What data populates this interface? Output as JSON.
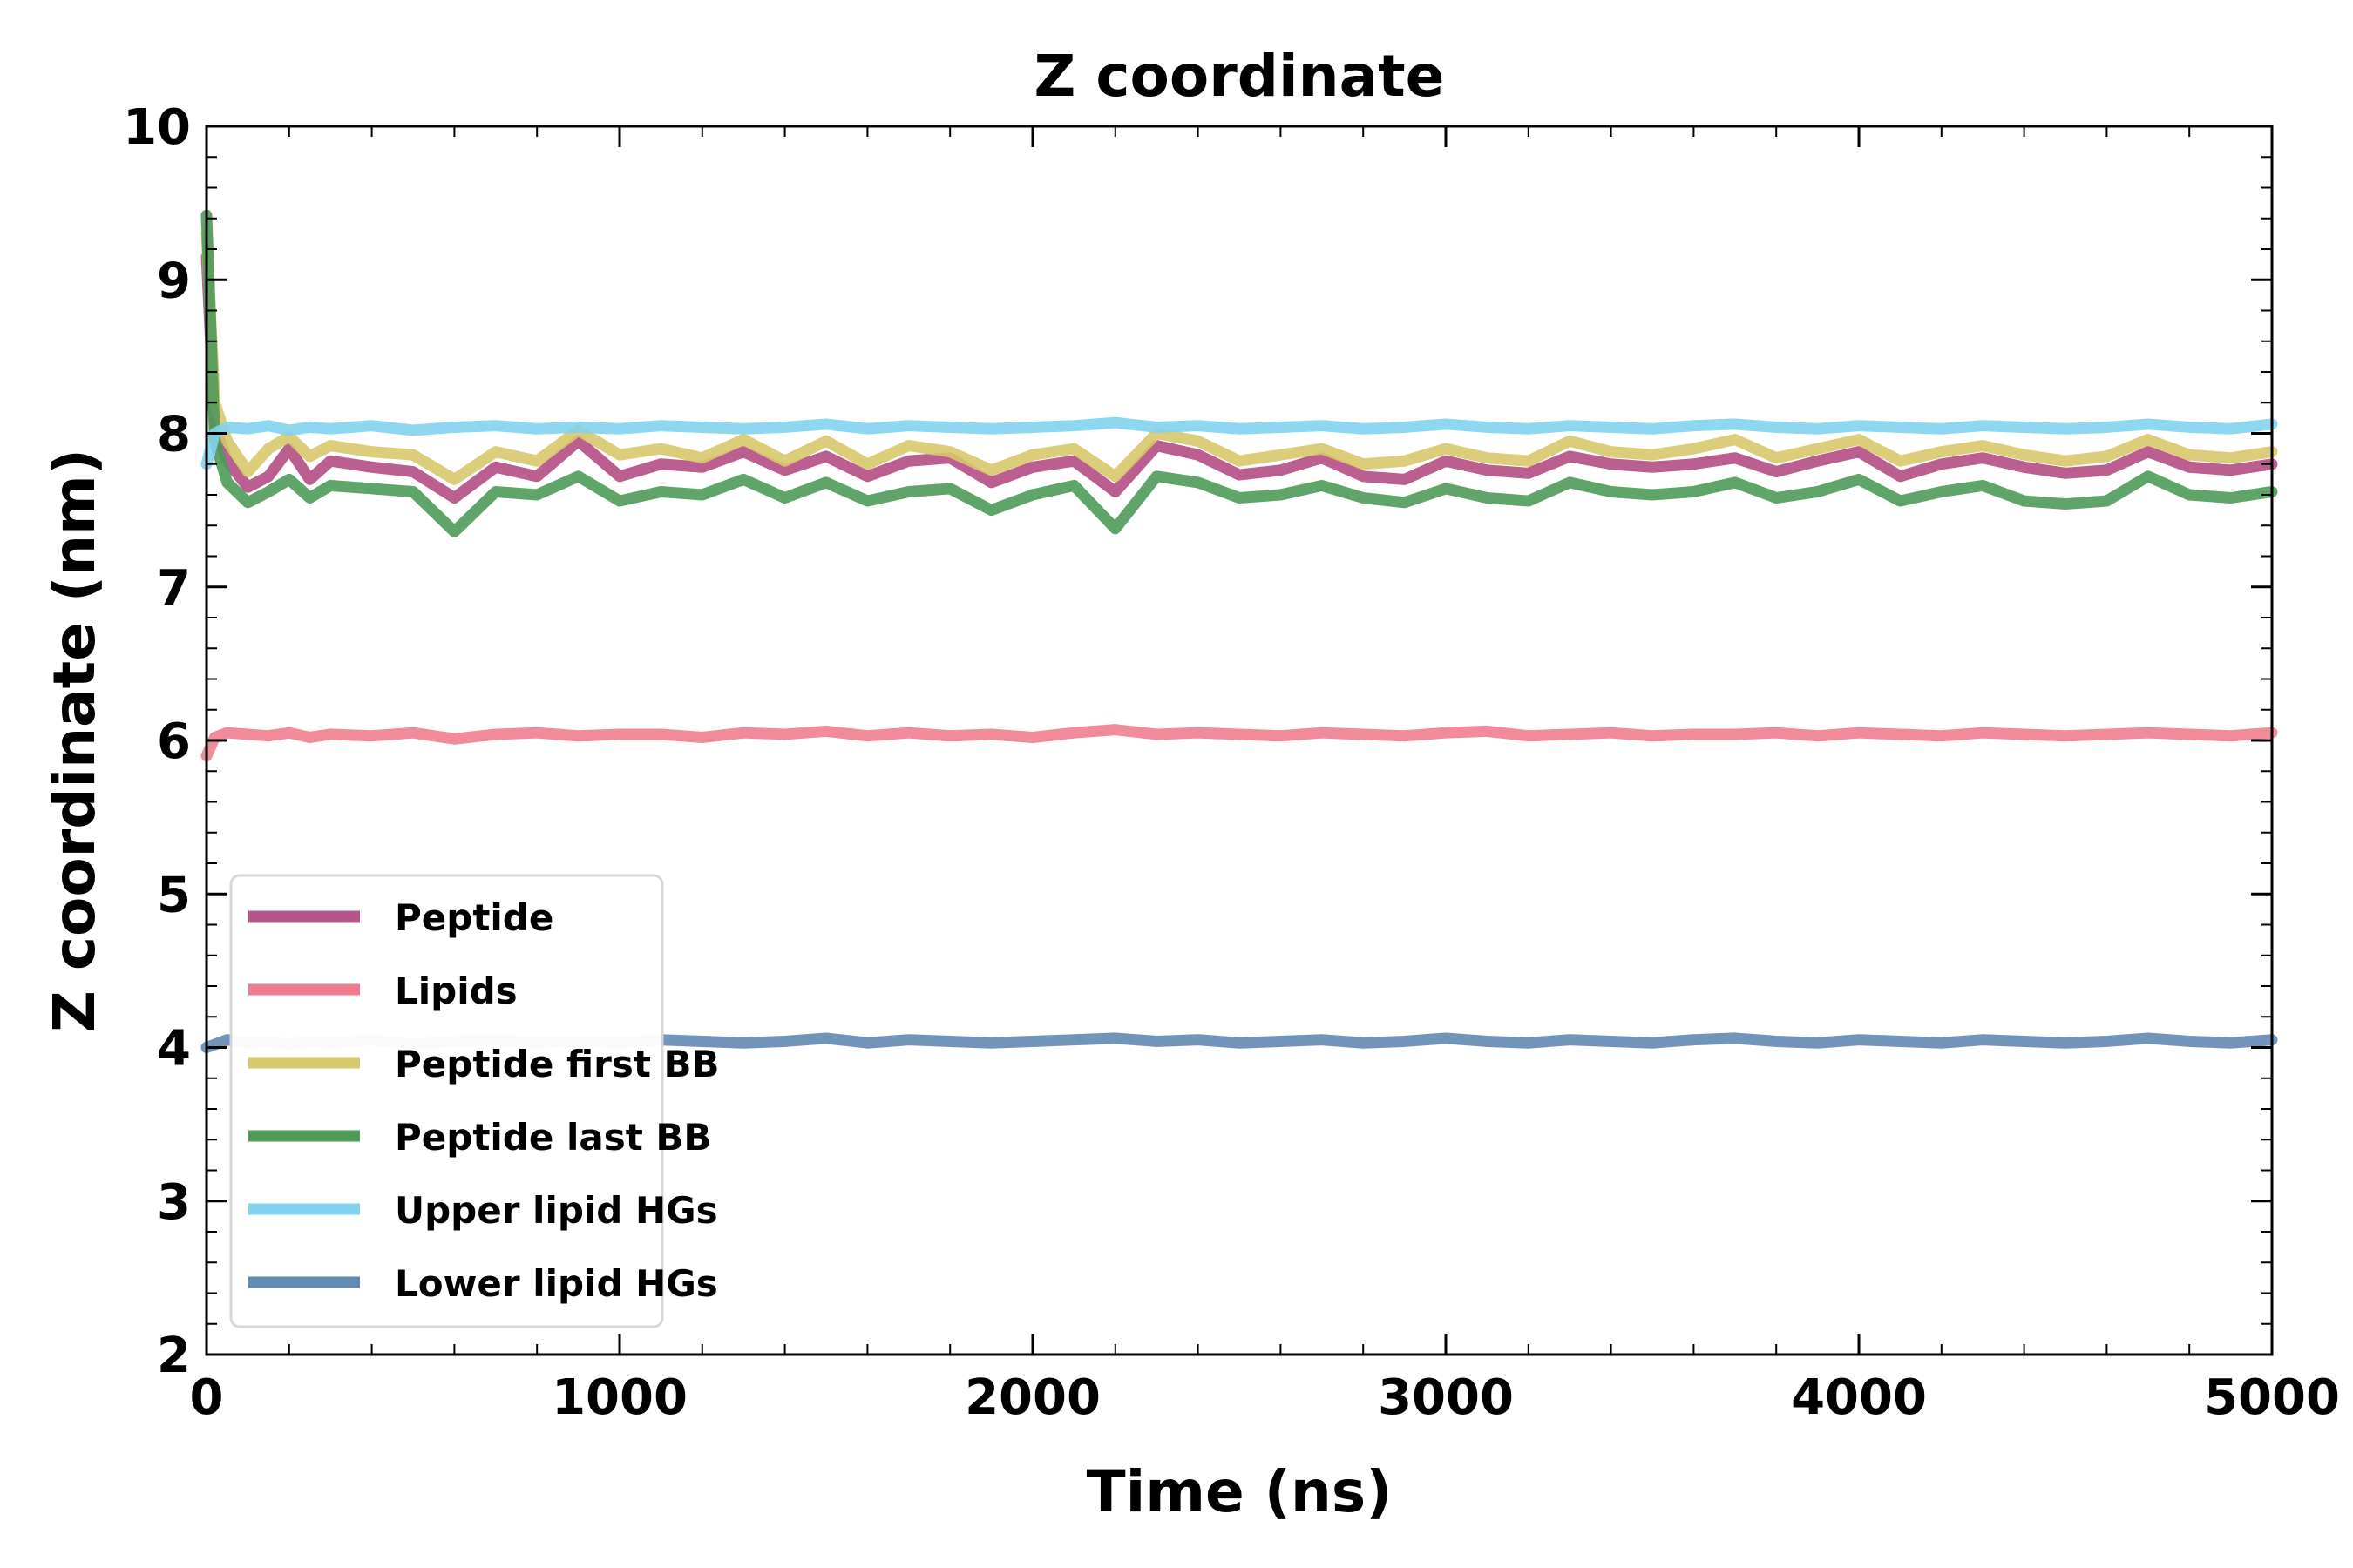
{
  "chart_data": {
    "type": "line",
    "title": "Z coordinate",
    "xlabel": "Time (ns)",
    "ylabel": "Z coordinate (nm)",
    "xlim": [
      0,
      5000
    ],
    "ylim": [
      2,
      10
    ],
    "x_ticks": [
      0,
      1000,
      2000,
      3000,
      4000,
      5000
    ],
    "y_ticks": [
      2,
      3,
      4,
      5,
      6,
      7,
      8,
      9,
      10
    ],
    "x_ticks_text": [
      "0",
      "1000",
      "2000",
      "3000",
      "4000",
      "5000"
    ],
    "y_ticks_text": [
      "2",
      "3",
      "4",
      "5",
      "6",
      "7",
      "8",
      "9",
      "10"
    ],
    "grid": false,
    "legend_position": "lower-left",
    "series": [
      {
        "name": "Peptide",
        "color": "#b7558a",
        "x": [
          0,
          20,
          50,
          100,
          150,
          200,
          250,
          300,
          400,
          500,
          600,
          700,
          800,
          900,
          1000,
          1100,
          1200,
          1300,
          1400,
          1500,
          1600,
          1700,
          1800,
          1900,
          2000,
          2100,
          2200,
          2300,
          2400,
          2500,
          2600,
          2700,
          2800,
          2900,
          3000,
          3100,
          3200,
          3300,
          3400,
          3500,
          3600,
          3700,
          3800,
          3900,
          4000,
          4100,
          4200,
          4300,
          4400,
          4500,
          4600,
          4700,
          4800,
          4900,
          5000
        ],
        "y": [
          9.15,
          8.05,
          7.82,
          7.65,
          7.72,
          7.9,
          7.7,
          7.82,
          7.78,
          7.75,
          7.58,
          7.78,
          7.72,
          7.95,
          7.72,
          7.8,
          7.78,
          7.88,
          7.76,
          7.85,
          7.72,
          7.82,
          7.84,
          7.68,
          7.78,
          7.82,
          7.62,
          7.92,
          7.86,
          7.73,
          7.76,
          7.84,
          7.72,
          7.7,
          7.82,
          7.76,
          7.74,
          7.85,
          7.8,
          7.78,
          7.8,
          7.84,
          7.75,
          7.82,
          7.88,
          7.72,
          7.8,
          7.84,
          7.78,
          7.74,
          7.76,
          7.88,
          7.78,
          7.76,
          7.8
        ]
      },
      {
        "name": "Lipids",
        "color": "#ef7d8e",
        "x": [
          0,
          20,
          50,
          100,
          150,
          200,
          250,
          300,
          400,
          500,
          600,
          700,
          800,
          900,
          1000,
          1100,
          1200,
          1300,
          1400,
          1500,
          1600,
          1700,
          1800,
          1900,
          2000,
          2100,
          2200,
          2300,
          2400,
          2500,
          2600,
          2700,
          2800,
          2900,
          3000,
          3100,
          3200,
          3300,
          3400,
          3500,
          3600,
          3700,
          3800,
          3900,
          4000,
          4100,
          4200,
          4300,
          4400,
          4500,
          4600,
          4700,
          4800,
          4900,
          5000
        ],
        "y": [
          5.9,
          6.02,
          6.05,
          6.04,
          6.03,
          6.05,
          6.02,
          6.04,
          6.03,
          6.05,
          6.01,
          6.04,
          6.05,
          6.03,
          6.04,
          6.04,
          6.02,
          6.05,
          6.04,
          6.06,
          6.03,
          6.05,
          6.03,
          6.04,
          6.02,
          6.05,
          6.07,
          6.04,
          6.05,
          6.04,
          6.03,
          6.05,
          6.04,
          6.03,
          6.05,
          6.06,
          6.03,
          6.04,
          6.05,
          6.03,
          6.04,
          6.04,
          6.05,
          6.03,
          6.05,
          6.04,
          6.03,
          6.05,
          6.04,
          6.03,
          6.04,
          6.05,
          6.04,
          6.03,
          6.05
        ]
      },
      {
        "name": "Peptide first BB",
        "color": "#d8c86c",
        "x": [
          0,
          20,
          50,
          100,
          150,
          200,
          250,
          300,
          400,
          500,
          600,
          700,
          800,
          900,
          1000,
          1100,
          1200,
          1300,
          1400,
          1500,
          1600,
          1700,
          1800,
          1900,
          2000,
          2100,
          2200,
          2300,
          2400,
          2500,
          2600,
          2700,
          2800,
          2900,
          3000,
          3100,
          3200,
          3300,
          3400,
          3500,
          3600,
          3700,
          3800,
          3900,
          4000,
          4100,
          4200,
          4300,
          4400,
          4500,
          4600,
          4700,
          4800,
          4900,
          5000
        ],
        "y": [
          9.3,
          8.2,
          7.95,
          7.75,
          7.9,
          7.98,
          7.85,
          7.92,
          7.88,
          7.86,
          7.7,
          7.88,
          7.82,
          8.02,
          7.86,
          7.9,
          7.84,
          7.96,
          7.82,
          7.95,
          7.8,
          7.92,
          7.88,
          7.76,
          7.86,
          7.9,
          7.72,
          8.0,
          7.95,
          7.82,
          7.86,
          7.9,
          7.8,
          7.82,
          7.9,
          7.84,
          7.82,
          7.95,
          7.88,
          7.86,
          7.9,
          7.96,
          7.84,
          7.9,
          7.96,
          7.82,
          7.88,
          7.92,
          7.86,
          7.82,
          7.85,
          7.96,
          7.86,
          7.84,
          7.88
        ]
      },
      {
        "name": "Peptide last BB",
        "color": "#4e9b59",
        "x": [
          0,
          20,
          50,
          100,
          150,
          200,
          250,
          300,
          400,
          500,
          600,
          700,
          800,
          900,
          1000,
          1100,
          1200,
          1300,
          1400,
          1500,
          1600,
          1700,
          1800,
          1900,
          2000,
          2100,
          2200,
          2300,
          2400,
          2500,
          2600,
          2700,
          2800,
          2900,
          3000,
          3100,
          3200,
          3300,
          3400,
          3500,
          3600,
          3700,
          3800,
          3900,
          4000,
          4100,
          4200,
          4300,
          4400,
          4500,
          4600,
          4700,
          4800,
          4900,
          5000
        ],
        "y": [
          9.42,
          7.95,
          7.68,
          7.55,
          7.62,
          7.7,
          7.58,
          7.66,
          7.64,
          7.62,
          7.36,
          7.62,
          7.6,
          7.72,
          7.56,
          7.62,
          7.6,
          7.7,
          7.58,
          7.68,
          7.56,
          7.62,
          7.64,
          7.5,
          7.6,
          7.66,
          7.38,
          7.72,
          7.68,
          7.58,
          7.6,
          7.66,
          7.58,
          7.55,
          7.64,
          7.58,
          7.56,
          7.68,
          7.62,
          7.6,
          7.62,
          7.68,
          7.58,
          7.62,
          7.7,
          7.56,
          7.62,
          7.66,
          7.56,
          7.54,
          7.56,
          7.72,
          7.6,
          7.58,
          7.62
        ]
      },
      {
        "name": "Upper lipid HGs",
        "color": "#82d3ef",
        "x": [
          0,
          20,
          50,
          100,
          150,
          200,
          250,
          300,
          400,
          500,
          600,
          700,
          800,
          900,
          1000,
          1100,
          1200,
          1300,
          1400,
          1500,
          1600,
          1700,
          1800,
          1900,
          2000,
          2100,
          2200,
          2300,
          2400,
          2500,
          2600,
          2700,
          2800,
          2900,
          3000,
          3100,
          3200,
          3300,
          3400,
          3500,
          3600,
          3700,
          3800,
          3900,
          4000,
          4100,
          4200,
          4300,
          4400,
          4500,
          4600,
          4700,
          4800,
          4900,
          5000
        ],
        "y": [
          7.8,
          8.0,
          8.04,
          8.03,
          8.05,
          8.02,
          8.04,
          8.03,
          8.05,
          8.02,
          8.04,
          8.05,
          8.03,
          8.04,
          8.03,
          8.05,
          8.04,
          8.03,
          8.04,
          8.06,
          8.03,
          8.05,
          8.04,
          8.03,
          8.04,
          8.05,
          8.07,
          8.04,
          8.05,
          8.03,
          8.04,
          8.05,
          8.03,
          8.04,
          8.06,
          8.04,
          8.03,
          8.05,
          8.04,
          8.03,
          8.05,
          8.06,
          8.04,
          8.03,
          8.05,
          8.04,
          8.03,
          8.05,
          8.04,
          8.03,
          8.04,
          8.06,
          8.04,
          8.03,
          8.06
        ]
      },
      {
        "name": "Lower lipid HGs",
        "color": "#6388b4",
        "x": [
          0,
          20,
          50,
          100,
          150,
          200,
          250,
          300,
          400,
          500,
          600,
          700,
          800,
          900,
          1000,
          1100,
          1200,
          1300,
          1400,
          1500,
          1600,
          1700,
          1800,
          1900,
          2000,
          2100,
          2200,
          2300,
          2400,
          2500,
          2600,
          2700,
          2800,
          2900,
          3000,
          3100,
          3200,
          3300,
          3400,
          3500,
          3600,
          3700,
          3800,
          3900,
          4000,
          4100,
          4200,
          4300,
          4400,
          4500,
          4600,
          4700,
          4800,
          4900,
          5000
        ],
        "y": [
          4.0,
          4.02,
          4.05,
          4.03,
          4.04,
          4.02,
          4.04,
          4.03,
          4.05,
          4.02,
          4.04,
          4.05,
          4.03,
          4.04,
          4.03,
          4.05,
          4.04,
          4.03,
          4.04,
          4.06,
          4.03,
          4.05,
          4.04,
          4.03,
          4.04,
          4.05,
          4.06,
          4.04,
          4.05,
          4.03,
          4.04,
          4.05,
          4.03,
          4.04,
          4.06,
          4.04,
          4.03,
          4.05,
          4.04,
          4.03,
          4.05,
          4.06,
          4.04,
          4.03,
          4.05,
          4.04,
          4.03,
          4.05,
          4.04,
          4.03,
          4.04,
          4.06,
          4.04,
          4.03,
          4.05
        ]
      }
    ]
  }
}
